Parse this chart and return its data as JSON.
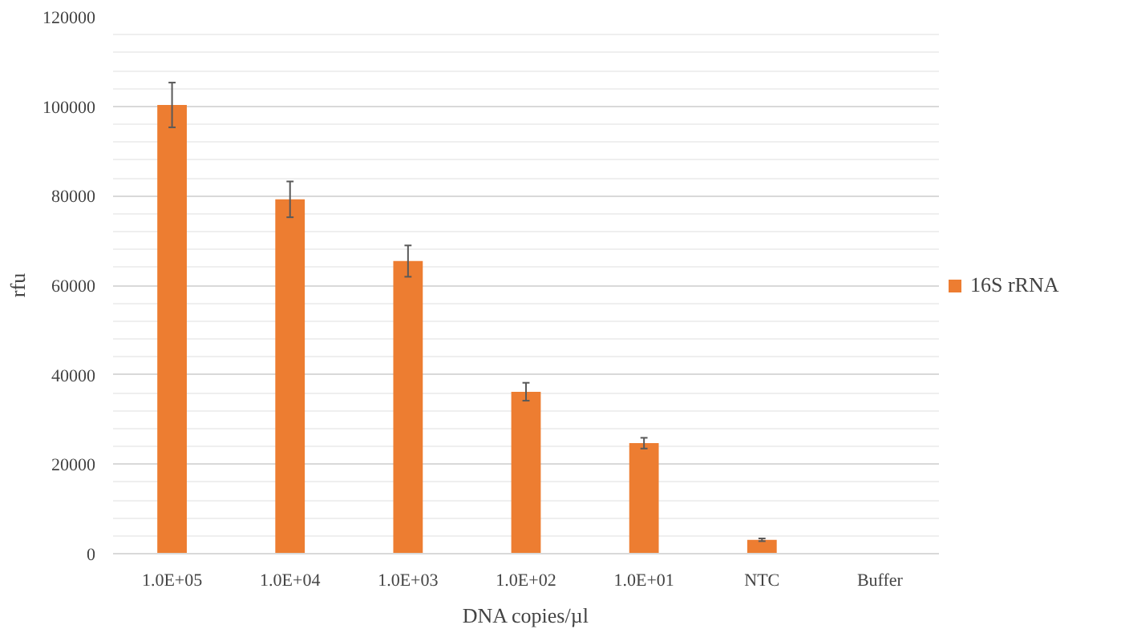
{
  "chart_data": {
    "type": "bar",
    "xlabel": "DNA copies/µl",
    "ylabel": "rfu",
    "categories": [
      "1.0E+05",
      "1.0E+04",
      "1.0E+03",
      "1.0E+02",
      "1.0E+01",
      "NTC",
      "Buffer"
    ],
    "series": [
      {
        "name": "16S rRNA",
        "color": "#ed7d31",
        "values": [
          100300,
          79200,
          65400,
          36200,
          24700,
          3100,
          null
        ],
        "errors": [
          5000,
          4000,
          3500,
          2000,
          1200,
          300,
          null
        ]
      }
    ],
    "ylim": [
      0,
      120000
    ],
    "yticks": [
      0,
      20000,
      40000,
      60000,
      80000,
      100000,
      120000
    ],
    "grid": "y",
    "legend": "right"
  }
}
